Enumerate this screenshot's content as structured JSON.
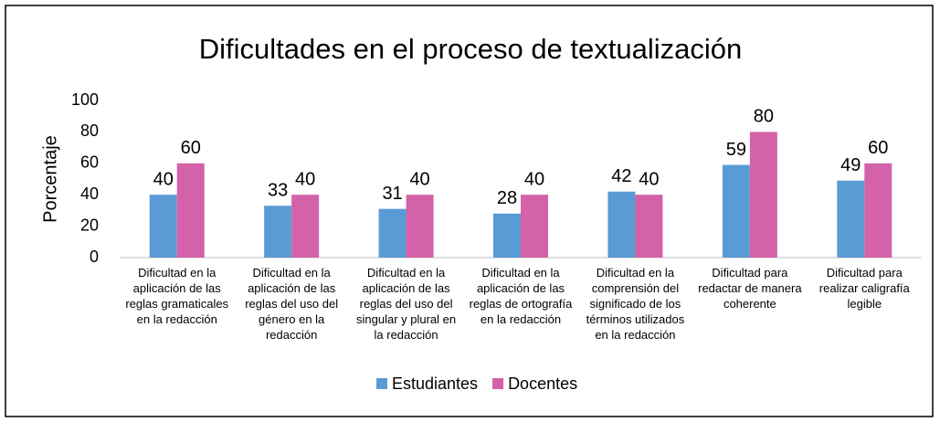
{
  "chart_data": {
    "type": "bar",
    "title": "Dificultades en el proceso de textualización",
    "y_label": "Porcentaje",
    "categories": [
      "Dificultad en la aplicación de las reglas gramaticales en la redacción",
      "Dificultad en la aplicación de las reglas del uso del género en la redacción",
      "Dificultad en la aplicación de las reglas del uso del singular y plural en la redacción",
      "Dificultad en la aplicación de las reglas de ortografía en la redacción",
      "Dificultad en la comprensión del significado de los términos utilizados en la redacción",
      "Dificultad para redactar de manera coherente",
      "Dificultad para realizar caligrafía legible"
    ],
    "series": [
      {
        "name": "Estudiantes",
        "color": "#5b9bd5",
        "values": [
          40,
          33,
          31,
          28,
          42,
          59,
          49
        ]
      },
      {
        "name": "Docentes",
        "color": "#d462a8",
        "values": [
          60,
          40,
          40,
          40,
          40,
          80,
          60
        ]
      }
    ],
    "ylim": [
      0,
      100
    ],
    "yticks": [
      0,
      20,
      40,
      60,
      80,
      100
    ],
    "grid": false,
    "legend": "bottom"
  }
}
